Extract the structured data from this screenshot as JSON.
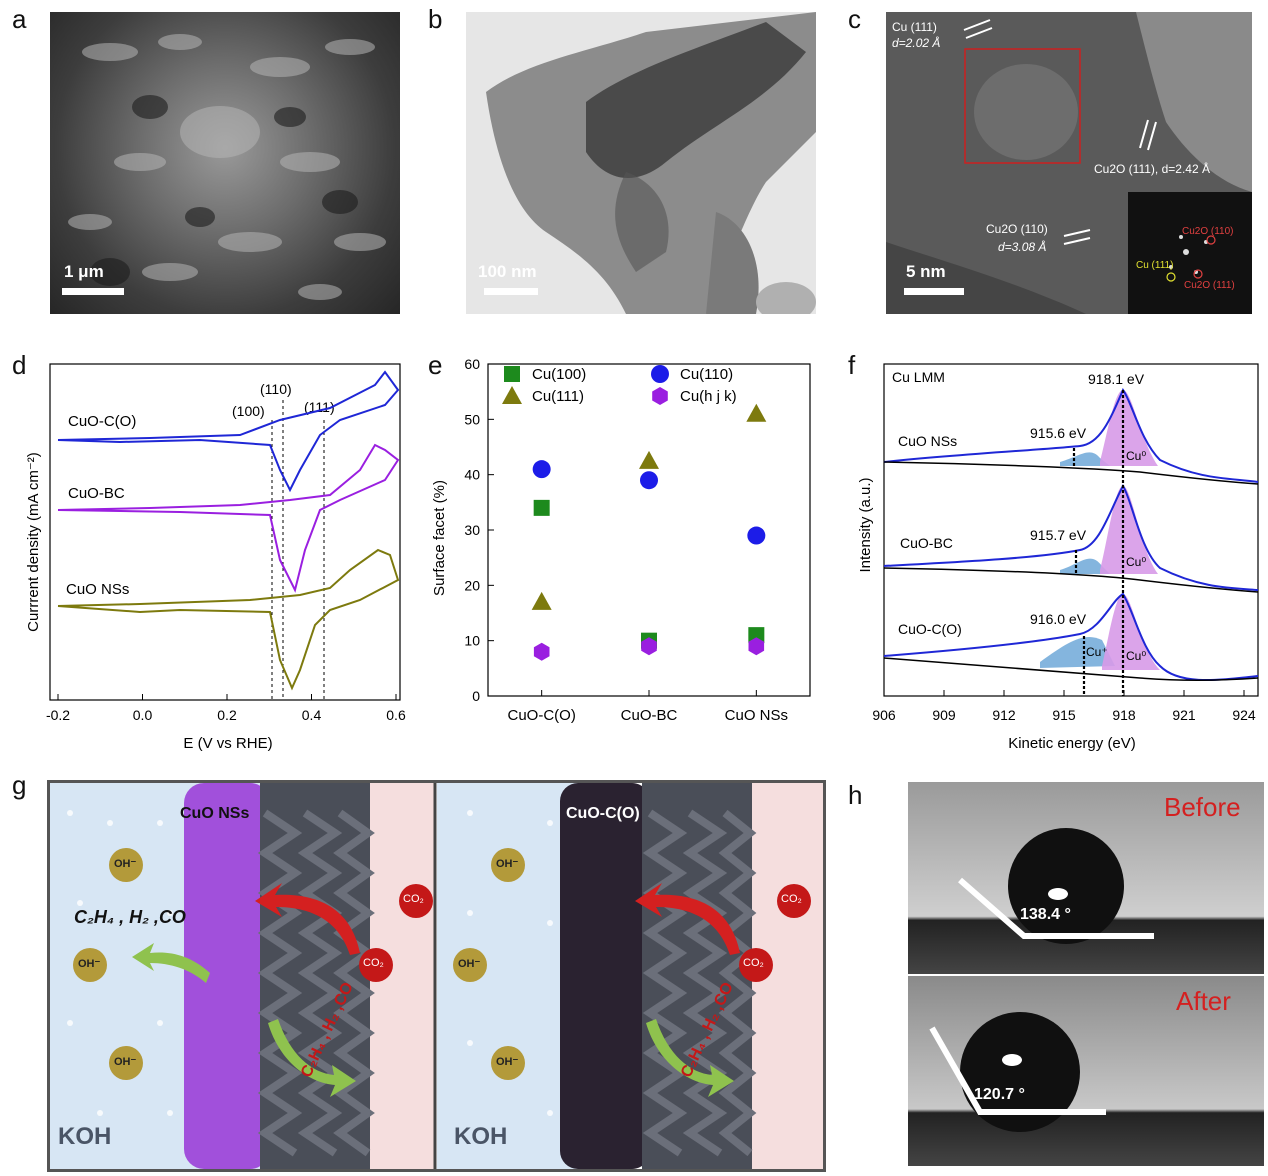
{
  "panel_labels": {
    "a": "a",
    "b": "b",
    "c": "c",
    "d": "d",
    "e": "e",
    "f": "f",
    "g": "g",
    "h": "h"
  },
  "panel_a": {
    "scale": "1 μm"
  },
  "panel_b": {
    "scale": "100 nm"
  },
  "panel_c": {
    "scale": "5 nm",
    "ann1_line1": "Cu (111)",
    "ann1_line2": "d=2.02 Å",
    "ann2": "Cu2O (111), d=2.42 Å",
    "ann3_line1": "Cu2O (110)",
    "ann3_line2": "d=3.08 Å",
    "fft_cu2o_110": "Cu2O (110)",
    "fft_cu111": "Cu (111)",
    "fft_cu2o_111": "Cu2O (111)"
  },
  "panel_d": {
    "ylabel": "Currrent density (mA cm⁻²)",
    "xlabel": "E (V vs RHE)",
    "xticks": [
      "-0.2",
      "0.0",
      "0.2",
      "0.4",
      "0.6"
    ],
    "peaks": [
      "(100)",
      "(110)",
      "(111)"
    ],
    "curves": [
      {
        "name": "CuO-C(O)",
        "color": "#1f27d6"
      },
      {
        "name": "CuO-BC",
        "color": "#9a1fe0"
      },
      {
        "name": "CuO NSs",
        "color": "#7d7a0e"
      }
    ]
  },
  "chart_data": [
    {
      "type": "scatter",
      "title": "",
      "xlabel": "",
      "ylabel": "Surface facet (%)",
      "categories": [
        "CuO-C(O)",
        "CuO-BC",
        "CuO NSs"
      ],
      "ylim": [
        0,
        60
      ],
      "yticks": [
        "0",
        "10",
        "20",
        "30",
        "40",
        "50",
        "60"
      ],
      "series": [
        {
          "name": "Cu(100)",
          "color": "#1d8a1d",
          "marker": "square",
          "values": [
            34,
            10,
            11
          ]
        },
        {
          "name": "Cu(110)",
          "color": "#1c1ce8",
          "marker": "circle",
          "values": [
            41,
            39,
            29
          ]
        },
        {
          "name": "Cu(111)",
          "color": "#7d7a0e",
          "marker": "triangle",
          "values": [
            17,
            42.5,
            51
          ]
        },
        {
          "name": "Cu(h j k)",
          "color": "#9a1fe0",
          "marker": "hexagon",
          "values": [
            8,
            9,
            9
          ]
        }
      ]
    }
  ],
  "panel_f": {
    "title": "Cu LMM",
    "ylabel": "Intensity (a.u.)",
    "xlabel": "Kinetic energy (eV)",
    "xticks": [
      "906",
      "909",
      "912",
      "915",
      "918",
      "921",
      "924"
    ],
    "peak_main": "918.1 eV",
    "cu0": "Cu⁰",
    "cu_plus": "Cu⁺",
    "spectra": [
      {
        "name": "CuO NSs",
        "peak": "915.6 eV"
      },
      {
        "name": "CuO-BC",
        "peak": "915.7 eV"
      },
      {
        "name": "CuO-C(O)",
        "peak": "916.0 eV"
      }
    ]
  },
  "panel_g": {
    "left_title": "CuO NSs",
    "right_title": "CuO-C(O)",
    "electrolyte": "KOH",
    "oh": "OH⁻",
    "co2": "CO₂",
    "products": "C₂H₄ , H₂ ,CO"
  },
  "panel_h": {
    "before": "Before",
    "after": "After",
    "angle_before": "138.4 °",
    "angle_after": "120.7 °"
  }
}
